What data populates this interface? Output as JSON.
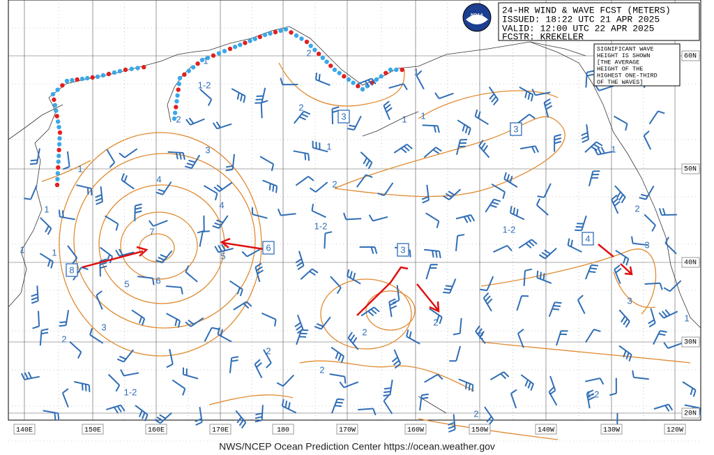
{
  "header": {
    "title": "24-HR WIND & WAVE FCST (METERS)",
    "issued": "ISSUED:  18:22 UTC 21 APR 2025",
    "valid": "VALID:  12:00 UTC 22 APR 2025",
    "forecaster": "FCSTR:  KREKELER",
    "logo": "NOAA"
  },
  "note": [
    "SIGNIFICANT WAVE",
    "HEIGHT IS SHOWN",
    "[THE AVERAGE",
    "HEIGHT OF THE",
    "HIGHEST ONE-THIRD",
    "OF THE WAVES]"
  ],
  "longitude_labels": [
    "140E",
    "150E",
    "160E",
    "170E",
    "180",
    "170W",
    "160W",
    "150W",
    "140W",
    "130W",
    "120W"
  ],
  "latitude_labels": [
    "60N",
    "50N",
    "40N",
    "30N",
    "20N"
  ],
  "wave_labels": [
    "1",
    "1-2",
    "2",
    "1",
    "2",
    "2",
    "3",
    "1",
    "1",
    "1",
    "1",
    "4",
    "4",
    "2",
    "1",
    "1-2",
    "1-2",
    "7",
    "1",
    "1",
    "5",
    "6",
    "5",
    "3",
    "2",
    "3",
    "3",
    "2",
    "1",
    "1",
    "2",
    "2",
    "2",
    "2",
    "2",
    "1-2",
    "1-2",
    "2"
  ],
  "boxed_labels": [
    "3",
    "3",
    "3",
    "6",
    "4",
    "8"
  ],
  "footer": "NWS/NCEP Ocean Prediction Center https://ocean.weather.gov"
}
